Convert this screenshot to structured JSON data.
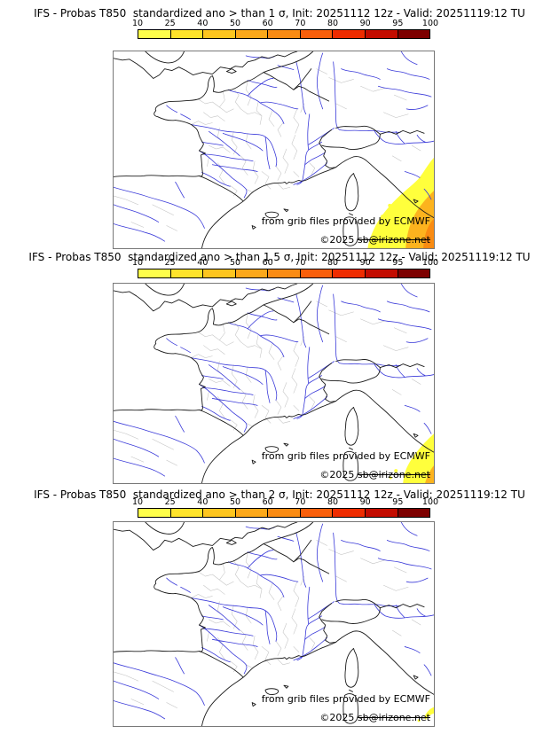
{
  "panels": [
    {
      "id": "sigma-1",
      "threshold_sigma": "1",
      "title": "IFS - Probas T850  standardized ano > than 1 σ, Init: 20251112 12z - Valid: 20251119:12 TU"
    },
    {
      "id": "sigma-1.5",
      "threshold_sigma": "1.5",
      "title": "IFS - Probas T850  standardized ano > than 1.5 σ, Init: 20251112 12z - Valid: 20251119:12 TU"
    },
    {
      "id": "sigma-2",
      "threshold_sigma": "2",
      "title": "IFS - Probas T850  standardized ano > than 2 σ, Init: 20251112 12z - Valid: 20251119:12 TU"
    }
  ],
  "colorbar": {
    "ticks": [
      "10",
      "25",
      "40",
      "50",
      "60",
      "70",
      "80",
      "90",
      "95",
      "100"
    ],
    "colors": [
      "#fefe4b",
      "#fee32b",
      "#fdc51f",
      "#fca81a",
      "#fa8b13",
      "#f95f0b",
      "#ee2c00",
      "#c30c00",
      "#7d0000"
    ]
  },
  "credits": {
    "provider": "from grib files provided by ECMWF",
    "copyright_prefix": "©2025 ",
    "email": "sb@irizone.net"
  },
  "map_colors": {
    "river": "#3a3ad9",
    "coast": "#1a1a1a",
    "department": "#c2c2c2",
    "frame": "#787878",
    "anomaly_yellow": "#ffff3c",
    "anomaly_orange": "#fcb31e",
    "anomaly_deep": "#f98b12"
  }
}
